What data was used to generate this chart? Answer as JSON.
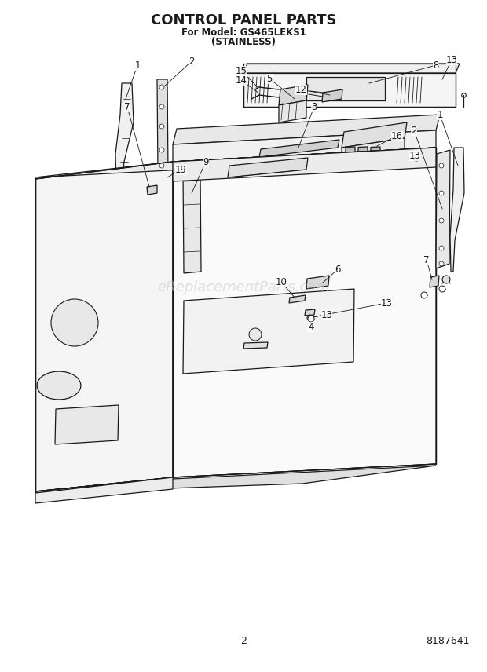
{
  "title": "CONTROL PANEL PARTS",
  "subtitle1": "For Model: GS465LEKS1",
  "subtitle2": "(STAINLESS)",
  "page_number": "2",
  "part_number": "8187641",
  "bg_color": "#ffffff",
  "lc": "#1a1a1a",
  "watermark": "eReplacementParts.com",
  "wm_color": "#c8c8c8",
  "title_fs": 13,
  "sub_fs": 8.5,
  "label_fs": 8.5
}
